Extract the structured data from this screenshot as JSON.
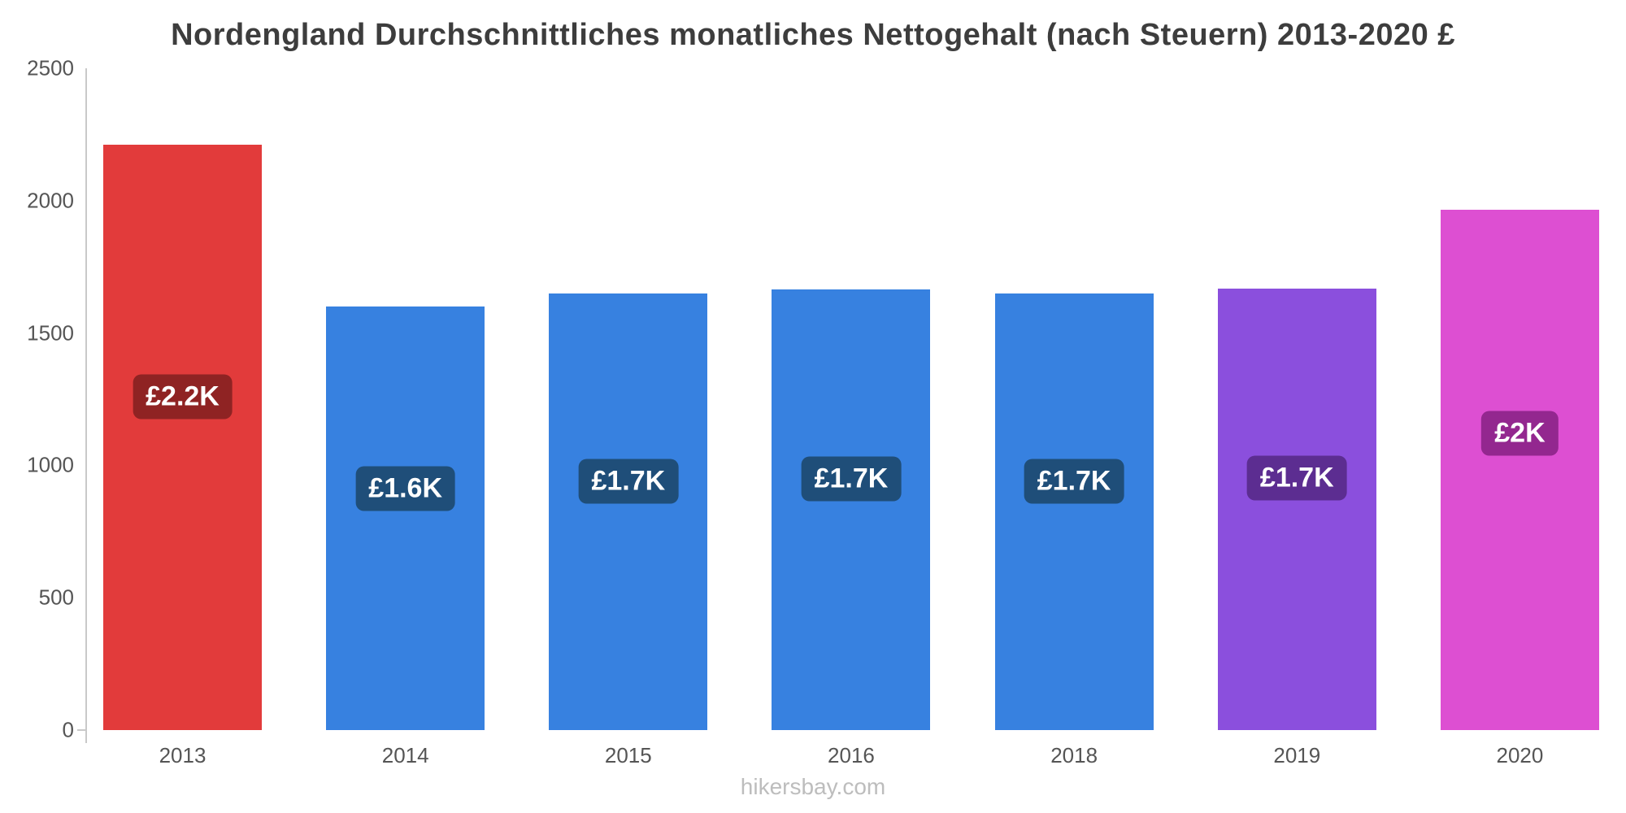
{
  "title": "Nordengland Durchschnittliches monatliches Nettogehalt (nach Steuern) 2013-2020 £",
  "footer": "hikersbay.com",
  "chart_data": {
    "type": "bar",
    "title": "Nordengland Durchschnittliches monatliches Nettogehalt (nach Steuern) 2013-2020 £",
    "categories": [
      "2013",
      "2014",
      "2015",
      "2016",
      "2018",
      "2019",
      "2020"
    ],
    "values": [
      2210,
      1600,
      1650,
      1665,
      1650,
      1668,
      1965
    ],
    "data_labels": [
      "£2.2K",
      "£1.6K",
      "£1.7K",
      "£1.7K",
      "£1.7K",
      "£1.7K",
      "£2K"
    ],
    "bar_colors": [
      "#e23b3b",
      "#3781e0",
      "#3781e0",
      "#3781e0",
      "#3781e0",
      "#8b4fdd",
      "#dd4fd2"
    ],
    "label_box_colors": [
      "#8f2323",
      "#1f4e79",
      "#1f4e79",
      "#1f4e79",
      "#1f4e79",
      "#5c2d91",
      "#93278f"
    ],
    "xlabel": "",
    "ylabel": "",
    "ylim": [
      0,
      2500
    ],
    "yticks": [
      0,
      500,
      1000,
      1500,
      2000,
      2500
    ],
    "grid": false,
    "legend": false,
    "axis_color": "#c9c9c9",
    "tick_label_color": "#555555",
    "title_color": "#3d3d3d",
    "footer_color": "#bdbdbd"
  }
}
